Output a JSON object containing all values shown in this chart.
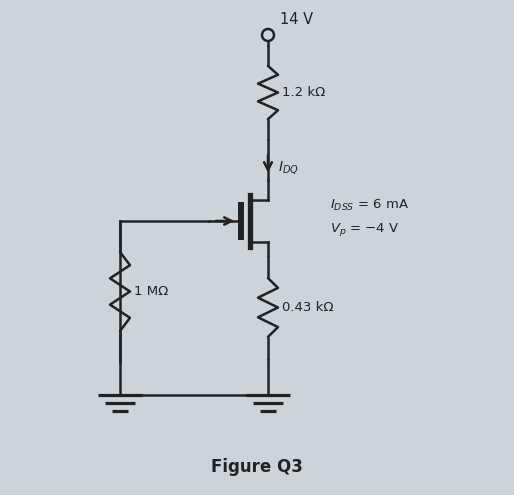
{
  "bg_color": "#ccd4da",
  "line_color": "#222222",
  "title": "Figure Q3",
  "title_fontsize": 12,
  "vdd_label": "14 V",
  "r1_label": "1.2 kΩ",
  "r2_label": "1 MΩ",
  "rs_label": "0.43 kΩ",
  "idss_line1": "$I_{DSS}$ = 6 mA",
  "vp_line2": "$V_p$ = −4 V",
  "lw": 1.8
}
